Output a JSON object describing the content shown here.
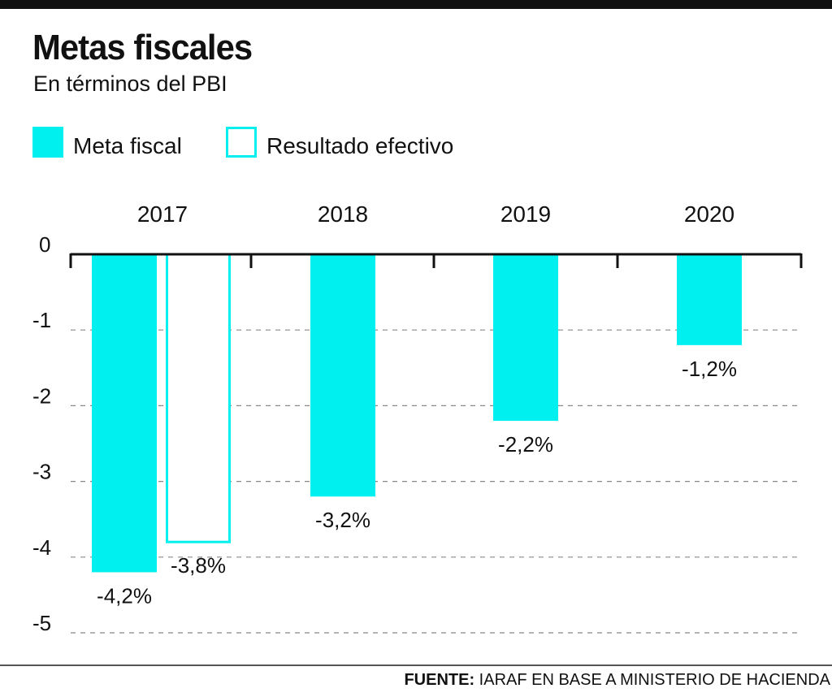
{
  "header": {
    "title": "Metas fiscales",
    "subtitle": "En términos del PBI"
  },
  "legend": [
    {
      "label": "Meta fiscal",
      "style": "filled",
      "color": "#00f0f0"
    },
    {
      "label": "Resultado efectivo",
      "style": "outline",
      "color": "#00f0f0"
    }
  ],
  "footer": {
    "source_label": "FUENTE:",
    "source_text": "IARAF EN BASE A MINISTERIO DE HACIENDA"
  },
  "chart_data": {
    "type": "bar",
    "categories": [
      "2017",
      "2018",
      "2019",
      "2020"
    ],
    "series": [
      {
        "name": "Meta fiscal",
        "values": [
          -4.2,
          -3.2,
          -2.2,
          -1.2
        ],
        "labels": [
          "-4,2%",
          "-3,2%",
          "-2,2%",
          "-1,2%"
        ],
        "fill": "#00f0f0",
        "style": "filled"
      },
      {
        "name": "Resultado efectivo",
        "values": [
          -3.8,
          null,
          null,
          null
        ],
        "labels": [
          "-3,8%",
          null,
          null,
          null
        ],
        "fill": "#00f0f0",
        "style": "outline"
      }
    ],
    "y_ticks": [
      0,
      -1,
      -2,
      -3,
      -4,
      -5
    ],
    "y_tick_labels": [
      "0",
      "-1",
      "-2",
      "-3",
      "-4",
      "-5"
    ],
    "ylim": [
      -5,
      0
    ],
    "grid": "dashed horizontal",
    "legend_position": "top-left",
    "category_position": "top"
  }
}
